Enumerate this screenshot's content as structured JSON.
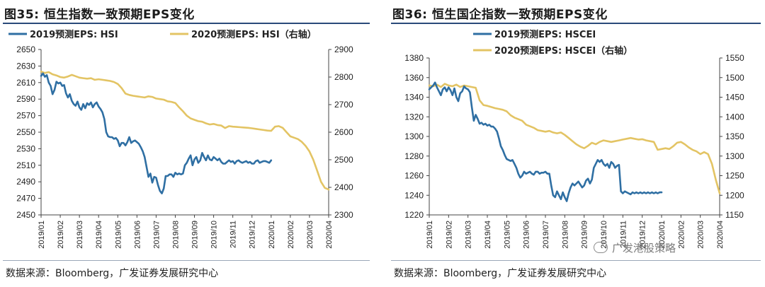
{
  "source_text": "数据来源：Bloomberg，广发证券发展研究中心",
  "watermark": "广发港股策略",
  "chart_data": [
    {
      "type": "line",
      "title": "图35:  恒生指数一致预期EPS变化",
      "colors": {
        "primary": "#2f6fa3",
        "secondary": "#e3c464"
      },
      "x_ticks": [
        "2019/01",
        "2019/02",
        "2019/03",
        "2019/04",
        "2019/05",
        "2019/06",
        "2019/07",
        "2019/08",
        "2019/09",
        "2019/10",
        "2019/11",
        "2019/12",
        "2020/01",
        "2020/02",
        "2020/03",
        "2020/04"
      ],
      "y_left": {
        "min": 2450,
        "max": 2650,
        "ticks": [
          2450,
          2470,
          2490,
          2510,
          2530,
          2550,
          2570,
          2590,
          2610,
          2630,
          2650
        ]
      },
      "y_right": {
        "min": 2300,
        "max": 2900,
        "ticks": [
          2300,
          2400,
          2500,
          2600,
          2700,
          2800,
          2900
        ]
      },
      "series": [
        {
          "name": "2019预测EPS:  HSI",
          "axis": "left",
          "color": "#2f6fa3",
          "x": [
            0,
            0.1,
            0.2,
            0.3,
            0.4,
            0.5,
            0.6,
            0.7,
            0.8,
            0.9,
            1.0,
            1.1,
            1.2,
            1.3,
            1.4,
            1.5,
            1.6,
            1.7,
            1.8,
            1.9,
            2.0,
            2.1,
            2.2,
            2.3,
            2.4,
            2.5,
            2.6,
            2.7,
            2.8,
            2.9,
            3.0,
            3.1,
            3.2,
            3.3,
            3.4,
            3.5,
            3.6,
            3.7,
            3.8,
            3.9,
            4.0,
            4.1,
            4.2,
            4.3,
            4.4,
            4.5,
            4.6,
            4.7,
            4.8,
            4.9,
            5.0,
            5.1,
            5.2,
            5.3,
            5.4,
            5.5,
            5.6,
            5.7,
            5.8,
            5.9,
            6.0,
            6.1,
            6.2,
            6.3,
            6.4,
            6.5,
            6.6,
            6.7,
            6.8,
            6.9,
            7.0,
            7.1,
            7.2,
            7.3,
            7.4,
            7.5,
            7.6,
            7.7,
            7.8,
            7.9,
            8.0,
            8.1,
            8.2,
            8.3,
            8.4,
            8.5,
            8.6,
            8.7,
            8.8,
            8.9,
            9.0,
            9.1,
            9.2,
            9.3,
            9.4,
            9.5,
            9.6,
            9.7,
            9.8,
            9.9,
            10.0,
            10.1,
            10.2,
            10.3,
            10.4,
            10.5,
            10.6,
            10.7,
            10.8,
            10.9,
            11.0,
            11.1,
            11.2,
            11.3,
            11.4,
            11.5,
            11.6,
            11.7,
            11.8,
            11.9,
            12.0
          ],
          "y": [
            2618,
            2621,
            2617,
            2619,
            2610,
            2606,
            2596,
            2601,
            2611,
            2609,
            2610,
            2606,
            2607,
            2597,
            2592,
            2596,
            2588,
            2584,
            2582,
            2587,
            2580,
            2577,
            2584,
            2579,
            2585,
            2583,
            2586,
            2580,
            2584,
            2586,
            2581,
            2578,
            2574,
            2566,
            2550,
            2545,
            2544,
            2544,
            2542,
            2543,
            2540,
            2533,
            2537,
            2537,
            2534,
            2538,
            2544,
            2537,
            2539,
            2540,
            2538,
            2536,
            2532,
            2527,
            2520,
            2508,
            2496,
            2500,
            2489,
            2496,
            2495,
            2486,
            2479,
            2476,
            2482,
            2497,
            2497,
            2499,
            2499,
            2496,
            2501,
            2499,
            2500,
            2499,
            2500,
            2510,
            2513,
            2518,
            2522,
            2510,
            2517,
            2520,
            2513,
            2516,
            2525,
            2520,
            2516,
            2522,
            2517,
            2516,
            2520,
            2518,
            2516,
            2518,
            2514,
            2512,
            2512,
            2514,
            2516,
            2514,
            2515,
            2512,
            2515,
            2516,
            2514,
            2513,
            2514,
            2515,
            2513,
            2514,
            2512,
            2512,
            2515,
            2516,
            2513,
            2514,
            2515,
            2515,
            2514,
            2513,
            2516
          ]
        },
        {
          "name": "2020预测EPS:  HSI（右轴）",
          "axis": "right",
          "color": "#e3c464",
          "x": [
            0,
            0.2,
            0.4,
            0.6,
            0.8,
            1.0,
            1.2,
            1.4,
            1.6,
            1.8,
            2.0,
            2.2,
            2.4,
            2.6,
            2.8,
            3.0,
            3.2,
            3.4,
            3.6,
            3.8,
            4.0,
            4.2,
            4.4,
            4.6,
            4.8,
            5.0,
            5.2,
            5.4,
            5.6,
            5.8,
            6.0,
            6.2,
            6.4,
            6.6,
            6.8,
            7.0,
            7.2,
            7.4,
            7.6,
            7.8,
            8.0,
            8.2,
            8.4,
            8.6,
            8.8,
            9.0,
            9.2,
            9.4,
            9.6,
            9.8,
            10.0,
            10.2,
            10.4,
            10.6,
            10.8,
            11.0,
            11.2,
            11.4,
            11.6,
            11.8,
            12.0,
            12.2,
            12.4,
            12.6,
            12.8,
            13.0,
            13.2,
            13.4,
            13.6,
            13.8,
            14.0,
            14.2,
            14.4,
            14.6,
            14.8,
            15.0
          ],
          "y": [
            2820,
            2815,
            2818,
            2810,
            2806,
            2800,
            2798,
            2802,
            2808,
            2803,
            2798,
            2796,
            2794,
            2796,
            2790,
            2792,
            2790,
            2788,
            2786,
            2782,
            2775,
            2760,
            2740,
            2735,
            2732,
            2730,
            2728,
            2726,
            2730,
            2728,
            2722,
            2720,
            2718,
            2712,
            2710,
            2706,
            2690,
            2676,
            2660,
            2650,
            2645,
            2640,
            2638,
            2632,
            2628,
            2630,
            2626,
            2624,
            2615,
            2622,
            2620,
            2619,
            2618,
            2617,
            2616,
            2614,
            2612,
            2610,
            2608,
            2606,
            2605,
            2620,
            2622,
            2616,
            2600,
            2585,
            2580,
            2575,
            2565,
            2550,
            2530,
            2500,
            2460,
            2420,
            2398,
            2392
          ]
        }
      ]
    },
    {
      "type": "line",
      "title": "图36:  恒生国企指数一致预期EPS变化",
      "colors": {
        "primary": "#2f6fa3",
        "secondary": "#e3c464"
      },
      "x_ticks": [
        "2019/01",
        "2019/02",
        "2019/03",
        "2019/04",
        "2019/05",
        "2019/06",
        "2019/07",
        "2019/08",
        "2019/09",
        "2019/10",
        "2019/11",
        "2019/12",
        "2020/01",
        "2020/02",
        "2020/03",
        "2020/04"
      ],
      "y_left": {
        "min": 1220,
        "max": 1380,
        "ticks": [
          1220,
          1240,
          1260,
          1280,
          1300,
          1320,
          1340,
          1360,
          1380
        ]
      },
      "y_right": {
        "min": 1150,
        "max": 1550,
        "ticks": [
          1150,
          1200,
          1250,
          1300,
          1350,
          1400,
          1450,
          1500,
          1550
        ]
      },
      "series": [
        {
          "name": "2019预测EPS:  HSCEI",
          "axis": "left",
          "color": "#2f6fa3",
          "x": [
            0,
            0.1,
            0.2,
            0.3,
            0.4,
            0.5,
            0.6,
            0.7,
            0.8,
            0.9,
            1.0,
            1.1,
            1.2,
            1.3,
            1.4,
            1.5,
            1.6,
            1.7,
            1.8,
            1.9,
            2.0,
            2.1,
            2.2,
            2.3,
            2.4,
            2.5,
            2.6,
            2.7,
            2.8,
            2.9,
            3.0,
            3.1,
            3.2,
            3.3,
            3.4,
            3.5,
            3.6,
            3.7,
            3.8,
            3.9,
            4.0,
            4.1,
            4.2,
            4.3,
            4.4,
            4.5,
            4.6,
            4.7,
            4.8,
            4.9,
            5.0,
            5.1,
            5.2,
            5.3,
            5.4,
            5.5,
            5.6,
            5.7,
            5.8,
            5.9,
            6.0,
            6.1,
            6.2,
            6.3,
            6.4,
            6.5,
            6.6,
            6.7,
            6.8,
            6.9,
            7.0,
            7.1,
            7.2,
            7.3,
            7.4,
            7.5,
            7.6,
            7.7,
            7.8,
            7.9,
            8.0,
            8.1,
            8.2,
            8.3,
            8.4,
            8.5,
            8.6,
            8.7,
            8.8,
            8.9,
            9.0,
            9.1,
            9.2,
            9.3,
            9.4,
            9.5,
            9.6,
            9.7,
            9.8,
            9.9,
            10.0,
            10.1,
            10.2,
            10.3,
            10.4,
            10.5,
            10.6,
            10.7,
            10.8,
            10.9,
            11.0,
            11.1,
            11.2,
            11.3,
            11.4,
            11.5,
            11.6,
            11.7,
            11.8,
            11.9,
            12.0
          ],
          "y": [
            1348,
            1350,
            1352,
            1355,
            1350,
            1346,
            1342,
            1348,
            1350,
            1346,
            1350,
            1347,
            1342,
            1349,
            1340,
            1336,
            1344,
            1346,
            1351,
            1349,
            1348,
            1345,
            1330,
            1316,
            1322,
            1318,
            1313,
            1314,
            1312,
            1313,
            1311,
            1312,
            1310,
            1310,
            1308,
            1305,
            1298,
            1290,
            1286,
            1281,
            1277,
            1276,
            1275,
            1276,
            1272,
            1268,
            1262,
            1258,
            1260,
            1264,
            1262,
            1263,
            1264,
            1262,
            1261,
            1264,
            1264,
            1262,
            1263,
            1263,
            1264,
            1262,
            1262,
            1250,
            1240,
            1238,
            1244,
            1240,
            1236,
            1243,
            1238,
            1234,
            1242,
            1248,
            1252,
            1250,
            1252,
            1254,
            1251,
            1248,
            1250,
            1255,
            1257,
            1252,
            1256,
            1268,
            1272,
            1276,
            1274,
            1276,
            1272,
            1270,
            1272,
            1268,
            1274,
            1272,
            1268,
            1270,
            1271,
            1244,
            1242,
            1244,
            1243,
            1242,
            1241,
            1243,
            1242,
            1243,
            1242,
            1243,
            1242,
            1243,
            1242,
            1243,
            1242,
            1243,
            1242,
            1243,
            1242,
            1243,
            1243
          ]
        },
        {
          "name": "2020预测EPS:  HSCEI（右轴）",
          "axis": "right",
          "color": "#e3c464",
          "x": [
            0,
            0.2,
            0.4,
            0.6,
            0.8,
            1.0,
            1.2,
            1.4,
            1.6,
            1.8,
            2.0,
            2.2,
            2.4,
            2.6,
            2.8,
            3.0,
            3.2,
            3.4,
            3.6,
            3.8,
            4.0,
            4.2,
            4.4,
            4.6,
            4.8,
            5.0,
            5.2,
            5.4,
            5.6,
            5.8,
            6.0,
            6.2,
            6.4,
            6.6,
            6.8,
            7.0,
            7.2,
            7.4,
            7.6,
            7.8,
            8.0,
            8.2,
            8.4,
            8.6,
            8.8,
            9.0,
            9.2,
            9.4,
            9.6,
            9.8,
            10.0,
            10.2,
            10.4,
            10.6,
            10.8,
            11.0,
            11.2,
            11.4,
            11.6,
            11.8,
            12.0,
            12.2,
            12.4,
            12.6,
            12.8,
            13.0,
            13.2,
            13.4,
            13.6,
            13.8,
            14.0,
            14.2,
            14.4,
            14.6,
            14.8,
            15.0
          ],
          "y": [
            1480,
            1478,
            1482,
            1476,
            1484,
            1480,
            1478,
            1482,
            1476,
            1480,
            1478,
            1476,
            1474,
            1442,
            1430,
            1428,
            1425,
            1422,
            1420,
            1418,
            1414,
            1404,
            1398,
            1394,
            1390,
            1380,
            1376,
            1372,
            1366,
            1364,
            1362,
            1364,
            1360,
            1358,
            1360,
            1354,
            1346,
            1338,
            1330,
            1324,
            1320,
            1326,
            1334,
            1330,
            1336,
            1340,
            1338,
            1336,
            1338,
            1340,
            1342,
            1344,
            1346,
            1344,
            1342,
            1343,
            1340,
            1338,
            1336,
            1316,
            1318,
            1320,
            1318,
            1325,
            1334,
            1336,
            1330,
            1322,
            1316,
            1312,
            1305,
            1310,
            1305,
            1280,
            1240,
            1205
          ]
        }
      ]
    }
  ]
}
